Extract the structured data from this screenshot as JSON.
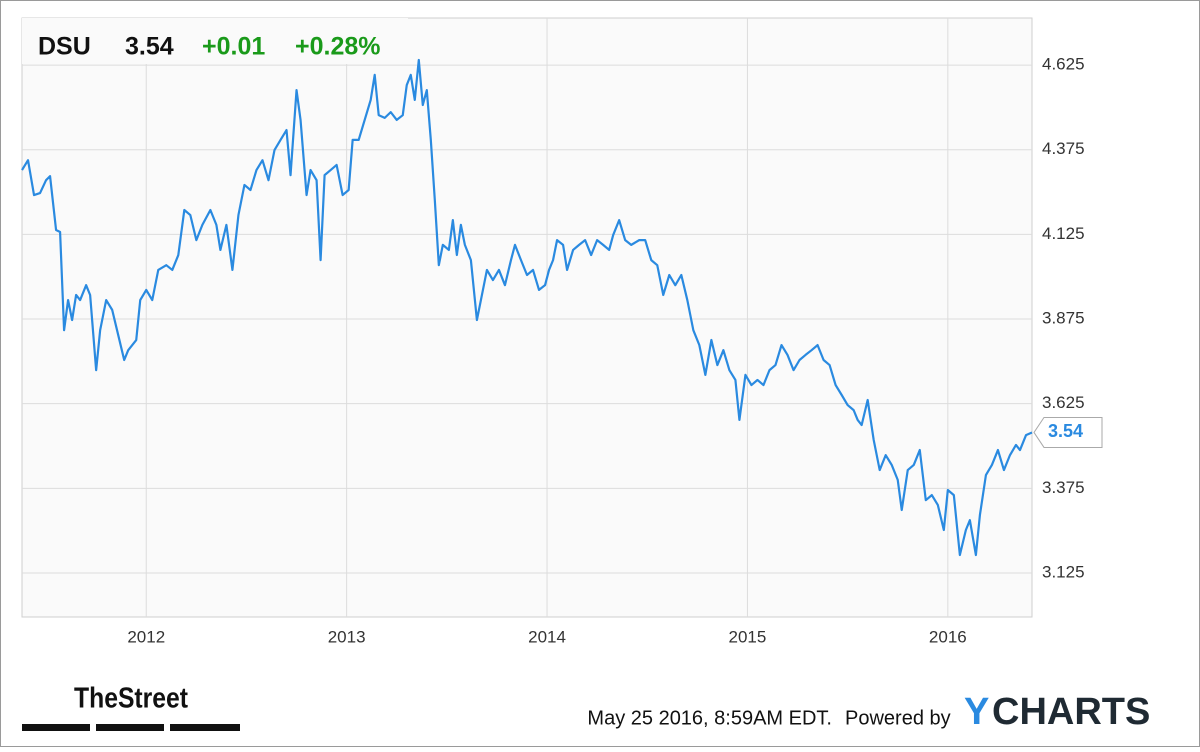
{
  "chart_data": {
    "type": "line",
    "header": {
      "symbol": "DSU",
      "price": "3.54",
      "change": "+0.01",
      "change_pct": "+0.28%"
    },
    "footer": {
      "timestamp": "May 25 2016, 8:59AM EDT.",
      "powered_by": "Powered by",
      "brand_mark": "Y",
      "brand_name": "CHARTS",
      "source": "TheStreet"
    },
    "xlim": [
      2011.38,
      2016.42
    ],
    "xticks": [
      2012,
      2013,
      2014,
      2015,
      2016
    ],
    "ylim": [
      2.995,
      4.764
    ],
    "yticks": [
      3.125,
      3.375,
      3.625,
      3.875,
      4.125,
      4.375,
      4.625
    ],
    "grid": true,
    "series": [
      {
        "name": "DSU",
        "color": "#2a8ae0",
        "x": [
          2011.38,
          2011.41,
          2011.44,
          2011.47,
          2011.5,
          2011.52,
          2011.55,
          2011.57,
          2011.59,
          2011.61,
          2011.63,
          2011.65,
          2011.67,
          2011.7,
          2011.72,
          2011.75,
          2011.77,
          2011.8,
          2011.83,
          2011.86,
          2011.89,
          2011.91,
          2011.95,
          2011.97,
          2012.0,
          2012.03,
          2012.06,
          2012.1,
          2012.13,
          2012.16,
          2012.19,
          2012.22,
          2012.25,
          2012.28,
          2012.32,
          2012.35,
          2012.37,
          2012.4,
          2012.43,
          2012.46,
          2012.49,
          2012.52,
          2012.55,
          2012.58,
          2012.61,
          2012.64,
          2012.67,
          2012.7,
          2012.72,
          2012.75,
          2012.77,
          2012.8,
          2012.82,
          2012.85,
          2012.87,
          2012.89,
          2012.92,
          2012.95,
          2012.98,
          2013.01,
          2013.03,
          2013.06,
          2013.09,
          2013.12,
          2013.14,
          2013.16,
          2013.19,
          2013.22,
          2013.25,
          2013.28,
          2013.3,
          2013.32,
          2013.34,
          2013.36,
          2013.38,
          2013.4,
          2013.42,
          2013.44,
          2013.46,
          2013.48,
          2013.51,
          2013.53,
          2013.55,
          2013.57,
          2013.59,
          2013.62,
          2013.65,
          2013.67,
          2013.7,
          2013.73,
          2013.76,
          2013.79,
          2013.82,
          2013.84,
          2013.87,
          2013.9,
          2013.93,
          2013.96,
          2013.99,
          2014.01,
          2014.03,
          2014.05,
          2014.08,
          2014.1,
          2014.13,
          2014.16,
          2014.19,
          2014.22,
          2014.25,
          2014.28,
          2014.31,
          2014.33,
          2014.36,
          2014.39,
          2014.42,
          2014.46,
          2014.49,
          2014.52,
          2014.55,
          2014.58,
          2014.61,
          2014.64,
          2014.67,
          2014.7,
          2014.73,
          2014.76,
          2014.79,
          2014.82,
          2014.85,
          2014.88,
          2014.91,
          2014.94,
          2014.96,
          2014.99,
          2015.02,
          2015.05,
          2015.08,
          2015.11,
          2015.14,
          2015.17,
          2015.2,
          2015.23,
          2015.26,
          2015.29,
          2015.32,
          2015.35,
          2015.38,
          2015.41,
          2015.44,
          2015.47,
          2015.5,
          2015.53,
          2015.55,
          2015.57,
          2015.6,
          2015.63,
          2015.66,
          2015.69,
          2015.72,
          2015.75,
          2015.77,
          2015.8,
          2015.83,
          2015.86,
          2015.89,
          2015.92,
          2015.95,
          2015.98,
          2016.0,
          2016.03,
          2016.06,
          2016.09,
          2016.11,
          2016.14,
          2016.16,
          2016.19,
          2016.22,
          2016.25,
          2016.28,
          2016.31,
          2016.34,
          2016.36,
          2016.39,
          2016.42
        ],
        "values": [
          4.315,
          4.344,
          4.241,
          4.247,
          4.285,
          4.297,
          4.138,
          4.132,
          3.842,
          3.931,
          3.872,
          3.946,
          3.931,
          3.975,
          3.946,
          3.724,
          3.842,
          3.931,
          3.902,
          3.828,
          3.754,
          3.783,
          3.813,
          3.931,
          3.961,
          3.931,
          4.02,
          4.034,
          4.02,
          4.064,
          4.197,
          4.182,
          4.108,
          4.153,
          4.197,
          4.153,
          4.079,
          4.153,
          4.02,
          4.182,
          4.271,
          4.256,
          4.315,
          4.344,
          4.285,
          4.374,
          4.404,
          4.433,
          4.3,
          4.551,
          4.463,
          4.241,
          4.315,
          4.285,
          4.049,
          4.3,
          4.315,
          4.33,
          4.241,
          4.256,
          4.404,
          4.404,
          4.463,
          4.522,
          4.596,
          4.477,
          4.469,
          4.486,
          4.463,
          4.477,
          4.566,
          4.596,
          4.522,
          4.64,
          4.507,
          4.551,
          4.404,
          4.226,
          4.034,
          4.094,
          4.079,
          4.167,
          4.064,
          4.153,
          4.094,
          4.049,
          3.872,
          3.931,
          4.02,
          3.99,
          4.02,
          3.975,
          4.049,
          4.094,
          4.049,
          4.005,
          4.02,
          3.961,
          3.975,
          4.02,
          4.049,
          4.108,
          4.094,
          4.02,
          4.079,
          4.094,
          4.108,
          4.064,
          4.108,
          4.094,
          4.079,
          4.123,
          4.167,
          4.108,
          4.094,
          4.108,
          4.108,
          4.049,
          4.034,
          3.946,
          4.005,
          3.975,
          4.005,
          3.931,
          3.842,
          3.798,
          3.71,
          3.813,
          3.739,
          3.783,
          3.724,
          3.695,
          3.577,
          3.71,
          3.68,
          3.695,
          3.68,
          3.724,
          3.739,
          3.798,
          3.769,
          3.724,
          3.754,
          3.769,
          3.783,
          3.798,
          3.754,
          3.739,
          3.68,
          3.651,
          3.621,
          3.606,
          3.577,
          3.562,
          3.636,
          3.518,
          3.429,
          3.473,
          3.444,
          3.4,
          3.311,
          3.429,
          3.444,
          3.488,
          3.34,
          3.355,
          3.326,
          3.252,
          3.37,
          3.355,
          3.178,
          3.252,
          3.281,
          3.178,
          3.296,
          3.414,
          3.444,
          3.488,
          3.429,
          3.473,
          3.503,
          3.488,
          3.532,
          3.54
        ]
      }
    ]
  }
}
